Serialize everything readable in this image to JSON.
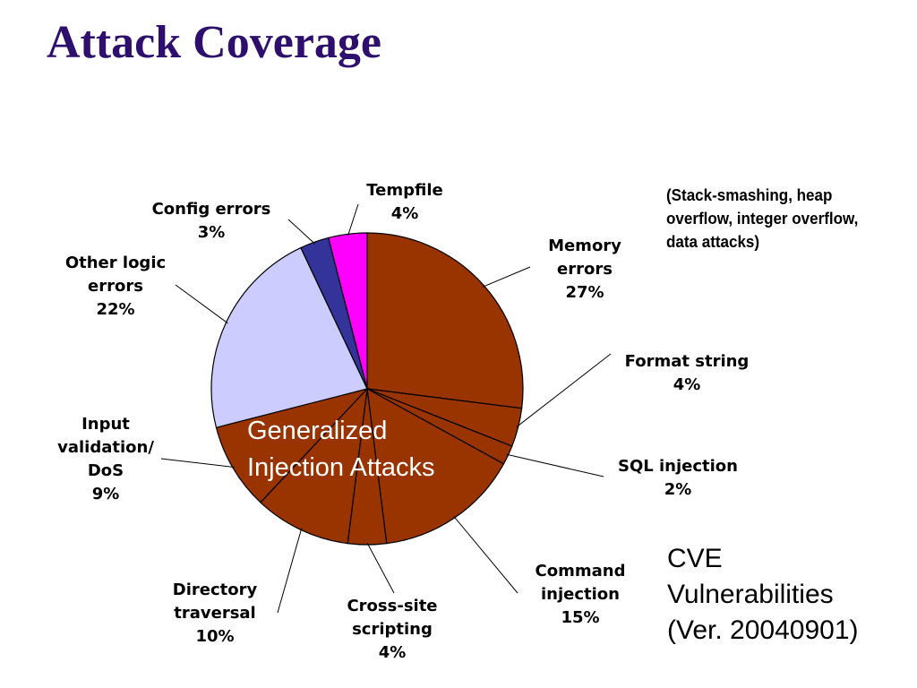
{
  "title": "Attack Coverage",
  "note": "(Stack-smashing, heap overflow, integer overflow, data attacks)",
  "inset_lines": [
    "Generalized",
    "Injection Attacks"
  ],
  "caption_lines": [
    "CVE",
    "Vulnerabilities",
    "(Ver. 20040901)"
  ],
  "chart_data": {
    "type": "pie",
    "title": "",
    "start_angle_deg": 0,
    "direction": "clockwise",
    "slices": [
      {
        "name": "Memory errors",
        "value": 27,
        "label_lines": [
          "Memory",
          "errors",
          "27%"
        ],
        "color": "#993300"
      },
      {
        "name": "Format string",
        "value": 4,
        "label_lines": [
          "Format string",
          "4%"
        ],
        "color": "#993300"
      },
      {
        "name": "SQL injection",
        "value": 2,
        "label_lines": [
          "SQL injection",
          "2%"
        ],
        "color": "#993300"
      },
      {
        "name": "Command injection",
        "value": 15,
        "label_lines": [
          "Command",
          "injection",
          "15%"
        ],
        "color": "#993300"
      },
      {
        "name": "Cross-site scripting",
        "value": 4,
        "label_lines": [
          "Cross-site",
          "scripting",
          "4%"
        ],
        "color": "#993300"
      },
      {
        "name": "Directory traversal",
        "value": 10,
        "label_lines": [
          "Directory",
          "traversal",
          "10%"
        ],
        "color": "#993300"
      },
      {
        "name": "Input validation/DoS",
        "value": 9,
        "label_lines": [
          "Input",
          "validation/",
          "DoS",
          "9%"
        ],
        "color": "#993300"
      },
      {
        "name": "Other logic errors",
        "value": 22,
        "label_lines": [
          "Other logic",
          "errors",
          "22%"
        ],
        "color": "#ccccff"
      },
      {
        "name": "Config errors",
        "value": 3,
        "label_lines": [
          "Config errors",
          "3%"
        ],
        "color": "#333399"
      },
      {
        "name": "Tempfile",
        "value": 4,
        "label_lines": [
          "Tempfile",
          "4%"
        ],
        "color": "#ff00ff"
      }
    ]
  }
}
